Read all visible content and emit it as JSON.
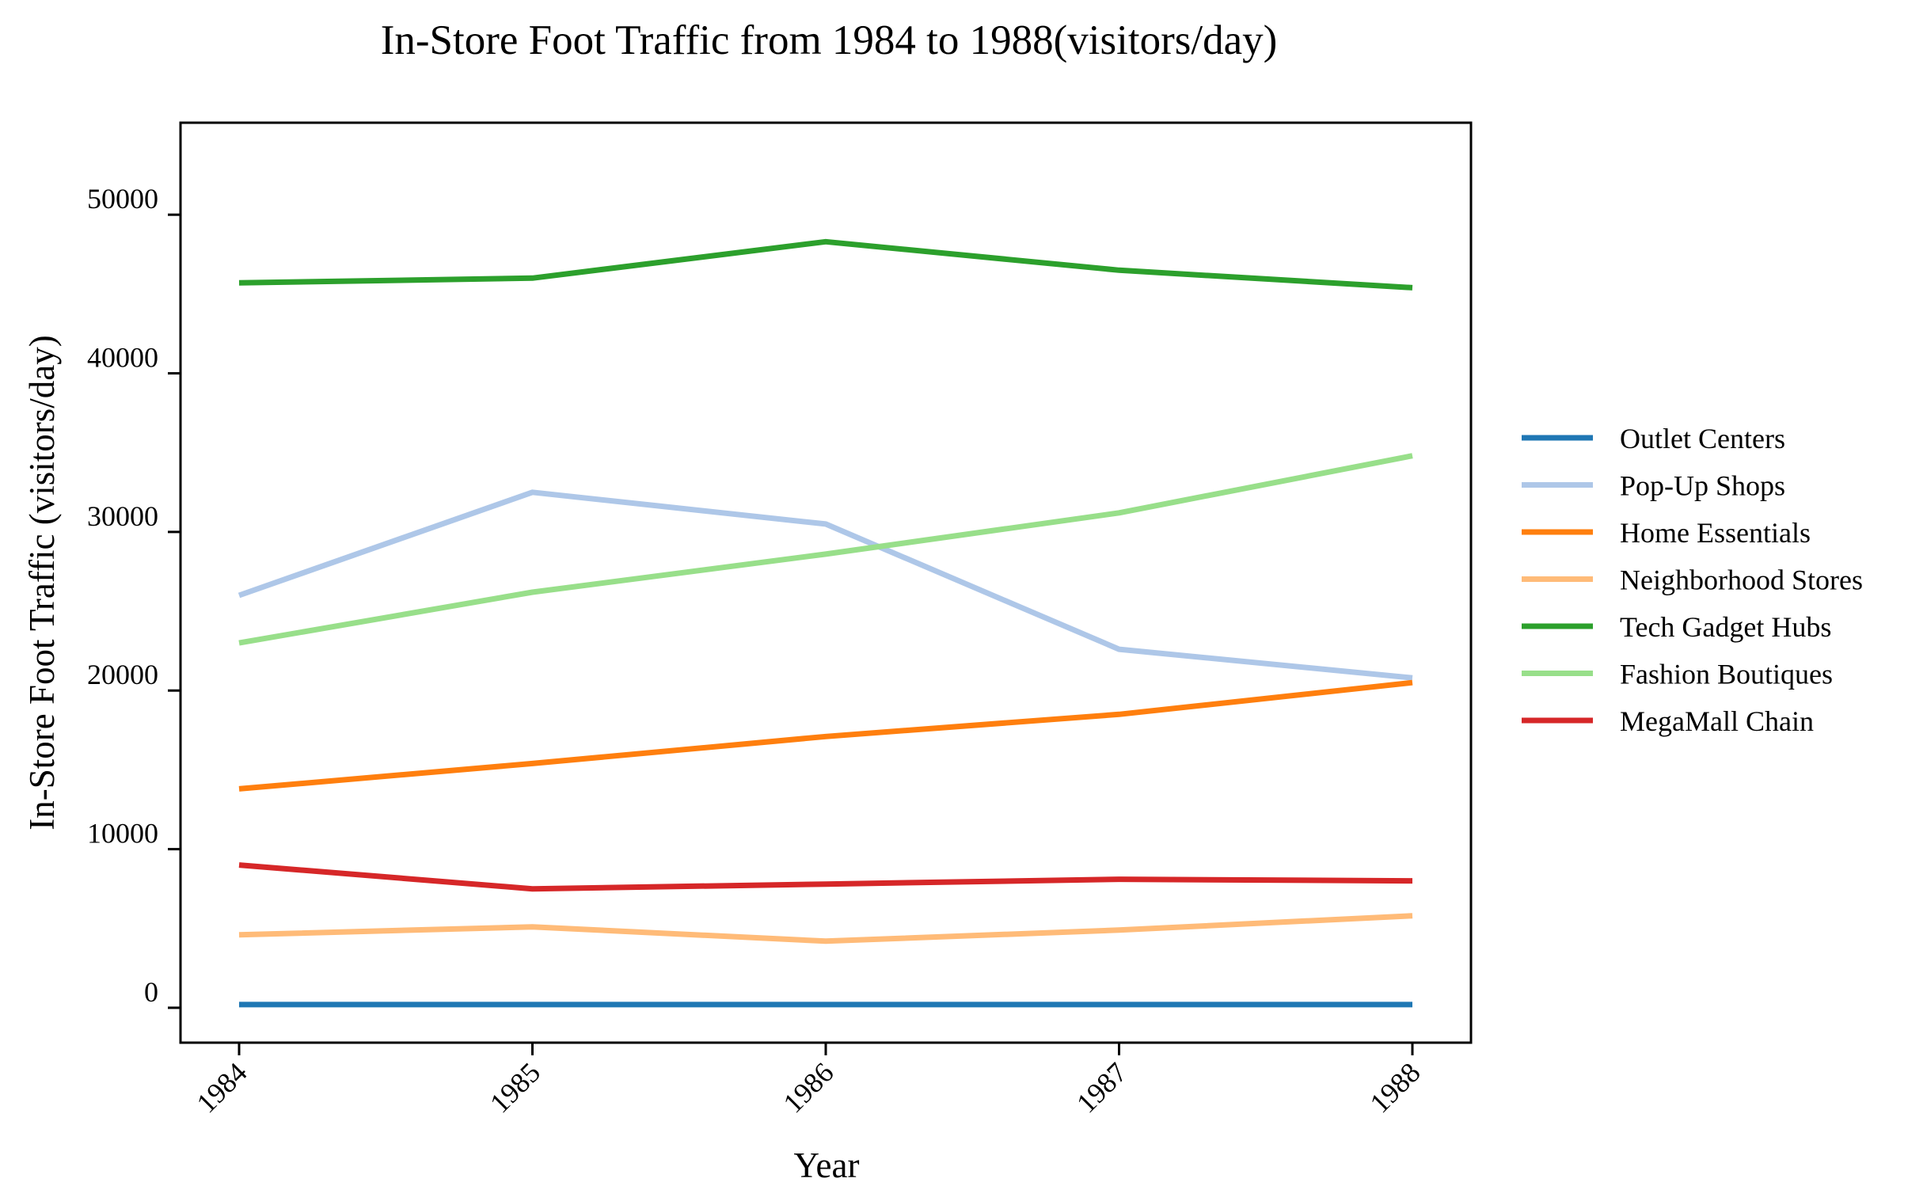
{
  "chart_data": {
    "type": "line",
    "title": "In-Store Foot Traffic from 1984 to 1988(visitors/day)",
    "xlabel": "Year",
    "ylabel": "In-Store Foot Traffic (visitors/day)",
    "x": [
      "1984",
      "1985",
      "1986",
      "1987",
      "1988"
    ],
    "ylim": [
      -2200,
      55800
    ],
    "yticks": [
      0,
      10000,
      20000,
      30000,
      40000,
      50000
    ],
    "grid": false,
    "legend_position": "right",
    "series": [
      {
        "name": "Outlet Centers",
        "color": "#1f77b4",
        "values": [
          200,
          200,
          200,
          200,
          200
        ]
      },
      {
        "name": "Pop-Up Shops",
        "color": "#aec7e8",
        "values": [
          26000,
          32500,
          30500,
          22600,
          20800
        ]
      },
      {
        "name": "Home Essentials",
        "color": "#ff7f0e",
        "values": [
          13800,
          15400,
          17100,
          18500,
          20500
        ]
      },
      {
        "name": "Neighborhood Stores",
        "color": "#ffbb78",
        "values": [
          4600,
          5100,
          4200,
          4900,
          5800
        ]
      },
      {
        "name": "Tech Gadget Hubs",
        "color": "#2ca02c",
        "values": [
          45700,
          46000,
          48300,
          46500,
          45400
        ]
      },
      {
        "name": "Fashion Boutiques",
        "color": "#98df8a",
        "values": [
          23000,
          26200,
          28600,
          31200,
          34800
        ]
      },
      {
        "name": "MegaMall Chain",
        "color": "#d62728",
        "values": [
          9000,
          7500,
          7800,
          8100,
          8000
        ]
      }
    ]
  }
}
